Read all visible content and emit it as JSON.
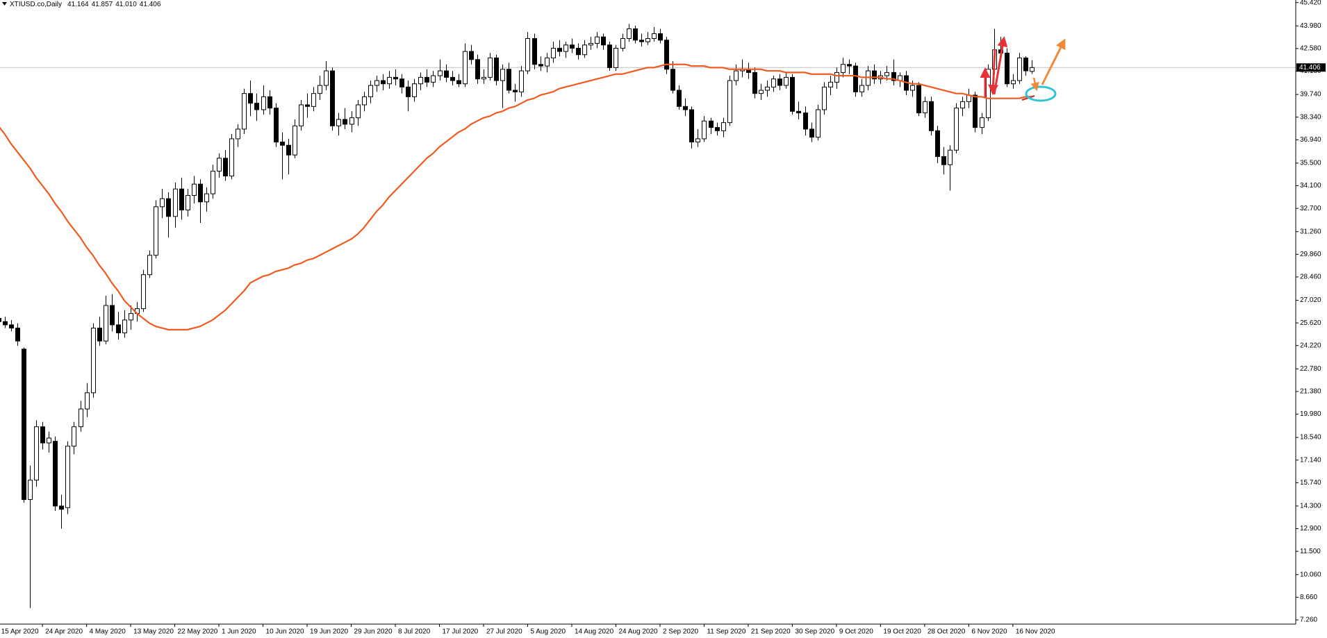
{
  "chart_data": {
    "type": "candlestick",
    "title": "XTIUSD.co,Daily",
    "header_values": [
      41.164,
      41.857,
      {
        "value": 41.01,
        "label": "41.010"
      },
      41.406
    ],
    "categories": [
      "15 Apr 2020",
      null,
      null,
      null,
      null,
      null,
      null,
      "24 Apr 2020",
      null,
      null,
      null,
      null,
      null,
      null,
      "4 May 2020",
      null,
      null,
      null,
      null,
      null,
      null,
      "13 May 2020",
      null,
      null,
      null,
      null,
      null,
      null,
      "22 May 2020",
      null,
      null,
      null,
      null,
      null,
      null,
      "1 Jun 2020",
      null,
      null,
      null,
      null,
      null,
      null,
      "10 Jun 2020",
      null,
      null,
      null,
      null,
      null,
      null,
      "19 Jun 2020",
      null,
      null,
      null,
      null,
      null,
      null,
      "29 Jun 2020",
      null,
      null,
      null,
      null,
      null,
      null,
      "8 Jul 2020",
      null,
      null,
      null,
      null,
      null,
      null,
      "17 Jul 2020",
      null,
      null,
      null,
      null,
      null,
      null,
      "27 Jul 2020",
      null,
      null,
      null,
      null,
      null,
      null,
      "5 Aug 2020",
      null,
      null,
      null,
      null,
      null,
      null,
      "14 Aug 2020",
      null,
      null,
      null,
      null,
      null,
      null,
      "24 Aug 2020",
      null,
      null,
      null,
      null,
      null,
      null,
      "2 Sep 2020",
      null,
      null,
      null,
      null,
      null,
      null,
      "11 Sep 2020",
      null,
      null,
      null,
      null,
      null,
      null,
      "21 Sep 2020",
      null,
      null,
      null,
      null,
      null,
      null,
      "30 Sep 2020",
      null,
      null,
      null,
      null,
      null,
      null,
      "9 Oct 2020",
      null,
      null,
      null,
      null,
      null,
      null,
      "19 Oct 2020",
      null,
      null,
      null,
      null,
      null,
      null,
      "28 Oct 2020",
      null,
      null,
      null,
      null,
      null,
      null,
      "6 Nov 2020",
      null,
      null,
      null,
      null,
      null,
      null,
      "16 Nov 2020",
      null,
      null,
      null
    ],
    "ohlc": [
      [
        25.9,
        26.4,
        25.5,
        25.7
      ],
      [
        25.7,
        26.0,
        25.3,
        25.5
      ],
      [
        25.5,
        25.8,
        25.1,
        25.3
      ],
      [
        25.3,
        25.6,
        24.2,
        24.5
      ],
      [
        24.0,
        24.1,
        14.5,
        14.7
      ],
      [
        14.7,
        16.8,
        8.0,
        15.9
      ],
      [
        15.9,
        19.6,
        15.5,
        19.2
      ],
      [
        19.2,
        19.5,
        17.8,
        18.2
      ],
      [
        18.2,
        18.9,
        17.6,
        18.5
      ],
      [
        18.3,
        18.6,
        14.0,
        14.3
      ],
      [
        14.3,
        15.0,
        12.9,
        14.1
      ],
      [
        14.2,
        18.3,
        13.8,
        18.0
      ],
      [
        18.0,
        19.5,
        17.5,
        19.2
      ],
      [
        19.2,
        20.8,
        18.9,
        20.3
      ],
      [
        20.3,
        21.9,
        19.8,
        21.3
      ],
      [
        21.3,
        25.6,
        21.0,
        25.3
      ],
      [
        25.3,
        26.0,
        24.2,
        24.5
      ],
      [
        24.5,
        27.3,
        24.3,
        26.7
      ],
      [
        26.7,
        27.4,
        25.1,
        25.5
      ],
      [
        25.5,
        26.3,
        24.6,
        25.0
      ],
      [
        25.0,
        26.4,
        24.7,
        25.8
      ],
      [
        25.8,
        26.7,
        25.2,
        26.2
      ],
      [
        26.2,
        26.9,
        25.7,
        26.5
      ],
      [
        26.5,
        28.9,
        26.3,
        28.6
      ],
      [
        28.6,
        30.1,
        28.4,
        29.8
      ],
      [
        29.8,
        33.2,
        29.6,
        32.8
      ],
      [
        32.8,
        33.9,
        32.1,
        33.3
      ],
      [
        33.3,
        33.7,
        30.9,
        32.2
      ],
      [
        32.2,
        34.3,
        31.5,
        33.9
      ],
      [
        33.9,
        34.6,
        32.0,
        32.6
      ],
      [
        32.6,
        33.9,
        32.2,
        33.5
      ],
      [
        33.5,
        34.7,
        33.0,
        34.2
      ],
      [
        34.2,
        34.5,
        31.8,
        33.1
      ],
      [
        33.1,
        34.0,
        32.5,
        33.6
      ],
      [
        33.6,
        35.4,
        33.3,
        35.0
      ],
      [
        35.0,
        36.1,
        34.6,
        35.8
      ],
      [
        35.8,
        36.3,
        34.4,
        34.7
      ],
      [
        34.7,
        37.3,
        34.5,
        37.0
      ],
      [
        37.0,
        37.9,
        36.5,
        37.6
      ],
      [
        37.6,
        40.1,
        37.3,
        39.8
      ],
      [
        39.8,
        40.6,
        38.4,
        39.2
      ],
      [
        39.2,
        39.8,
        38.1,
        38.8
      ],
      [
        38.8,
        40.3,
        38.5,
        39.6
      ],
      [
        39.6,
        40.0,
        38.5,
        38.9
      ],
      [
        38.9,
        39.2,
        36.5,
        36.8
      ],
      [
        36.8,
        37.4,
        34.5,
        36.6
      ],
      [
        36.6,
        37.0,
        34.8,
        36.0
      ],
      [
        36.0,
        38.2,
        35.8,
        37.8
      ],
      [
        37.8,
        39.4,
        37.5,
        39.1
      ],
      [
        39.1,
        39.8,
        38.3,
        39.0
      ],
      [
        39.0,
        40.2,
        38.7,
        39.8
      ],
      [
        39.8,
        40.9,
        39.4,
        40.3
      ],
      [
        40.3,
        41.8,
        40.0,
        41.2
      ],
      [
        41.2,
        41.4,
        37.5,
        37.8
      ],
      [
        37.8,
        38.6,
        37.2,
        38.2
      ],
      [
        38.2,
        38.9,
        37.6,
        37.9
      ],
      [
        37.9,
        38.7,
        37.4,
        38.3
      ],
      [
        38.3,
        39.4,
        37.8,
        39.1
      ],
      [
        39.1,
        39.9,
        38.7,
        39.6
      ],
      [
        39.6,
        40.6,
        39.2,
        40.3
      ],
      [
        40.3,
        40.9,
        39.9,
        40.6
      ],
      [
        40.6,
        41.0,
        40.0,
        40.4
      ],
      [
        40.4,
        41.2,
        40.1,
        40.8
      ],
      [
        40.8,
        41.3,
        40.3,
        40.7
      ],
      [
        40.7,
        41.0,
        39.8,
        40.2
      ],
      [
        40.2,
        40.6,
        38.7,
        39.6
      ],
      [
        39.6,
        40.7,
        39.3,
        40.4
      ],
      [
        40.4,
        41.1,
        40.0,
        40.8
      ],
      [
        40.8,
        41.3,
        40.2,
        40.5
      ],
      [
        40.5,
        41.2,
        40.2,
        40.9
      ],
      [
        40.9,
        41.9,
        40.6,
        41.2
      ],
      [
        41.2,
        41.6,
        40.5,
        40.8
      ],
      [
        40.8,
        41.2,
        40.3,
        40.6
      ],
      [
        40.6,
        41.0,
        40.2,
        40.4
      ],
      [
        40.4,
        42.9,
        40.2,
        42.4
      ],
      [
        42.4,
        42.8,
        41.6,
        41.9
      ],
      [
        41.9,
        42.2,
        40.4,
        40.7
      ],
      [
        40.7,
        41.3,
        40.4,
        40.8
      ],
      [
        40.8,
        42.3,
        40.6,
        42.0
      ],
      [
        42.0,
        42.2,
        40.3,
        40.6
      ],
      [
        40.6,
        41.6,
        38.9,
        41.3
      ],
      [
        41.3,
        41.7,
        39.8,
        40.0
      ],
      [
        40.0,
        40.4,
        39.3,
        39.9
      ],
      [
        39.9,
        41.5,
        39.6,
        41.2
      ],
      [
        41.2,
        43.6,
        41.0,
        43.2
      ],
      [
        43.2,
        43.5,
        41.3,
        41.6
      ],
      [
        41.6,
        42.1,
        41.2,
        41.5
      ],
      [
        41.5,
        42.3,
        41.1,
        42.0
      ],
      [
        42.0,
        43.0,
        41.7,
        42.6
      ],
      [
        42.6,
        43.1,
        42.1,
        42.4
      ],
      [
        42.4,
        43.0,
        42.0,
        42.8
      ],
      [
        42.8,
        43.2,
        42.3,
        42.6
      ],
      [
        42.6,
        42.9,
        41.9,
        42.2
      ],
      [
        42.2,
        43.1,
        42.0,
        42.8
      ],
      [
        42.8,
        43.3,
        42.5,
        42.9
      ],
      [
        42.9,
        43.6,
        42.6,
        43.3
      ],
      [
        43.3,
        43.5,
        42.5,
        42.8
      ],
      [
        42.8,
        43.0,
        41.2,
        41.4
      ],
      [
        41.4,
        42.8,
        41.2,
        42.6
      ],
      [
        42.6,
        43.5,
        42.4,
        43.2
      ],
      [
        43.2,
        44.1,
        43.0,
        43.8
      ],
      [
        43.8,
        44.0,
        42.9,
        43.1
      ],
      [
        43.1,
        43.5,
        42.7,
        43.0
      ],
      [
        43.0,
        43.6,
        42.8,
        43.2
      ],
      [
        43.2,
        43.9,
        43.0,
        43.5
      ],
      [
        43.5,
        43.8,
        42.9,
        43.1
      ],
      [
        43.1,
        43.3,
        41.0,
        41.3
      ],
      [
        41.3,
        41.8,
        39.8,
        40.0
      ],
      [
        40.0,
        40.3,
        38.8,
        39.0
      ],
      [
        39.0,
        39.5,
        38.4,
        38.8
      ],
      [
        38.8,
        39.0,
        36.4,
        36.8
      ],
      [
        36.8,
        37.6,
        36.5,
        37.0
      ],
      [
        37.0,
        38.4,
        36.8,
        38.1
      ],
      [
        38.1,
        38.3,
        37.3,
        37.7
      ],
      [
        37.7,
        38.0,
        37.2,
        37.5
      ],
      [
        37.5,
        38.3,
        37.1,
        38.0
      ],
      [
        38.0,
        40.9,
        37.8,
        40.6
      ],
      [
        40.6,
        41.6,
        40.3,
        41.2
      ],
      [
        41.2,
        41.9,
        40.8,
        41.3
      ],
      [
        41.3,
        41.7,
        40.7,
        41.1
      ],
      [
        41.1,
        41.4,
        39.5,
        39.8
      ],
      [
        39.8,
        40.4,
        39.4,
        40.0
      ],
      [
        40.0,
        40.6,
        39.6,
        40.2
      ],
      [
        40.2,
        40.9,
        39.9,
        40.7
      ],
      [
        40.7,
        41.0,
        40.0,
        40.3
      ],
      [
        40.3,
        41.1,
        40.1,
        40.8
      ],
      [
        40.8,
        41.0,
        38.5,
        38.7
      ],
      [
        38.7,
        39.3,
        38.2,
        38.6
      ],
      [
        38.6,
        39.0,
        37.2,
        37.6
      ],
      [
        37.6,
        38.0,
        36.8,
        37.1
      ],
      [
        37.1,
        39.1,
        36.9,
        38.8
      ],
      [
        38.8,
        40.5,
        38.5,
        40.2
      ],
      [
        40.2,
        40.9,
        39.7,
        40.5
      ],
      [
        40.5,
        41.4,
        40.1,
        41.1
      ],
      [
        41.1,
        42.0,
        40.8,
        41.6
      ],
      [
        41.6,
        41.9,
        41.0,
        41.5
      ],
      [
        41.5,
        41.7,
        39.6,
        39.9
      ],
      [
        39.9,
        40.7,
        39.6,
        40.3
      ],
      [
        40.3,
        41.5,
        40.0,
        41.2
      ],
      [
        41.2,
        41.6,
        40.4,
        40.7
      ],
      [
        40.7,
        41.2,
        40.4,
        40.9
      ],
      [
        40.9,
        41.5,
        40.6,
        41.1
      ],
      [
        41.1,
        41.9,
        40.3,
        40.6
      ],
      [
        40.6,
        41.1,
        40.2,
        40.9
      ],
      [
        40.9,
        41.2,
        39.7,
        40.0
      ],
      [
        40.0,
        40.6,
        39.6,
        40.3
      ],
      [
        40.3,
        40.5,
        38.4,
        38.6
      ],
      [
        38.6,
        39.6,
        38.3,
        39.3
      ],
      [
        39.3,
        39.6,
        37.2,
        37.5
      ],
      [
        37.5,
        37.8,
        35.5,
        35.9
      ],
      [
        35.9,
        36.5,
        34.8,
        35.4
      ],
      [
        35.4,
        36.6,
        33.8,
        36.3
      ],
      [
        36.3,
        39.2,
        36.1,
        38.9
      ],
      [
        38.9,
        39.6,
        38.4,
        39.3
      ],
      [
        39.3,
        40.1,
        38.9,
        39.7
      ],
      [
        39.7,
        39.9,
        37.4,
        37.7
      ],
      [
        37.7,
        38.6,
        37.3,
        38.3
      ],
      [
        38.3,
        41.6,
        38.1,
        41.3
      ],
      [
        41.3,
        43.8,
        41.0,
        42.5
      ],
      [
        42.5,
        43.3,
        41.9,
        42.3
      ],
      [
        42.3,
        42.6,
        40.2,
        40.4
      ],
      [
        40.4,
        41.0,
        40.1,
        40.6
      ],
      [
        40.6,
        42.3,
        40.4,
        42.0
      ],
      [
        42.0,
        42.1,
        40.9,
        41.2
      ],
      [
        41.164,
        41.857,
        41.01,
        41.406
      ]
    ],
    "up_color": "#ffffff",
    "down_color": "#000000",
    "series": [
      {
        "type": "line",
        "color": "#f05a1e",
        "values": [
          37.8,
          37.3,
          36.7,
          36.2,
          35.7,
          35.2,
          34.6,
          34.1,
          33.6,
          33.0,
          32.5,
          31.9,
          31.4,
          30.9,
          30.3,
          29.8,
          29.2,
          28.7,
          28.1,
          27.6,
          27.0,
          26.6,
          26.2,
          25.9,
          25.6,
          25.4,
          25.3,
          25.2,
          25.2,
          25.2,
          25.2,
          25.3,
          25.4,
          25.6,
          25.8,
          26.1,
          26.4,
          26.8,
          27.2,
          27.6,
          28.1,
          28.3,
          28.5,
          28.6,
          28.8,
          28.9,
          29.0,
          29.2,
          29.3,
          29.5,
          29.6,
          29.8,
          30.0,
          30.2,
          30.4,
          30.6,
          30.8,
          31.1,
          31.5,
          32.0,
          32.5,
          32.9,
          33.4,
          33.8,
          34.2,
          34.6,
          35.0,
          35.4,
          35.8,
          36.1,
          36.5,
          36.8,
          37.1,
          37.4,
          37.6,
          37.9,
          38.1,
          38.3,
          38.4,
          38.6,
          38.7,
          38.9,
          39.0,
          39.2,
          39.4,
          39.5,
          39.7,
          39.8,
          39.9,
          40.1,
          40.2,
          40.3,
          40.4,
          40.5,
          40.6,
          40.7,
          40.8,
          40.9,
          41.0,
          41.0,
          41.1,
          41.2,
          41.3,
          41.4,
          41.4,
          41.5,
          41.6,
          41.6,
          41.6,
          41.6,
          41.5,
          41.5,
          41.5,
          41.4,
          41.4,
          41.4,
          41.3,
          41.3,
          41.3,
          41.3,
          41.3,
          41.3,
          41.2,
          41.2,
          41.2,
          41.1,
          41.1,
          41.1,
          41.1,
          41.0,
          41.0,
          41.0,
          41.0,
          40.9,
          40.9,
          40.9,
          40.9,
          40.8,
          40.8,
          40.8,
          40.8,
          40.7,
          40.7,
          40.6,
          40.5,
          40.4,
          40.4,
          40.3,
          40.2,
          40.1,
          40.0,
          39.9,
          39.8,
          39.8,
          39.7,
          39.6,
          39.6,
          39.5,
          39.5,
          39.5,
          39.5,
          39.5,
          39.5,
          39.6,
          39.6
        ]
      }
    ],
    "last_price": 41.406,
    "ylim": [
      7.0,
      45.58
    ],
    "yticks": [
      {
        "value": 45.42,
        "label": "45.420"
      },
      {
        "value": 43.98,
        "label": "43.980"
      },
      {
        "value": 42.58,
        "label": "42.580"
      },
      {
        "value": 41.18,
        "label": "41.180"
      },
      {
        "value": 39.74,
        "label": "39.740"
      },
      {
        "value": 38.34,
        "label": "38.340"
      },
      {
        "value": 36.94,
        "label": "36.940"
      },
      {
        "value": 35.5,
        "label": "35.500"
      },
      {
        "value": 34.1,
        "label": "34.100"
      },
      {
        "value": 32.7,
        "label": "32.700"
      },
      {
        "value": 31.26,
        "label": "31.260"
      },
      {
        "value": 29.86,
        "label": "29.860"
      },
      {
        "value": 28.46,
        "label": "28.460"
      },
      {
        "value": 27.02,
        "label": "27.020"
      },
      {
        "value": 25.62,
        "label": "25.620"
      },
      {
        "value": 24.22,
        "label": "24.220"
      },
      {
        "value": 22.78,
        "label": "22.780"
      },
      {
        "value": 21.38,
        "label": "21.380"
      },
      {
        "value": 19.98,
        "label": "19.980"
      },
      {
        "value": 18.54,
        "label": "18.540"
      },
      {
        "value": 17.14,
        "label": "17.140"
      },
      {
        "value": 15.74,
        "label": "15.740"
      },
      {
        "value": 14.3,
        "label": "14.300"
      },
      {
        "value": 12.9,
        "label": "12.900"
      },
      {
        "value": 11.5,
        "label": "11.500"
      },
      {
        "value": 10.06,
        "label": "10.060"
      },
      {
        "value": 8.66,
        "label": "8.660"
      },
      {
        "value": 7.26,
        "label": "7.260"
      }
    ]
  }
}
